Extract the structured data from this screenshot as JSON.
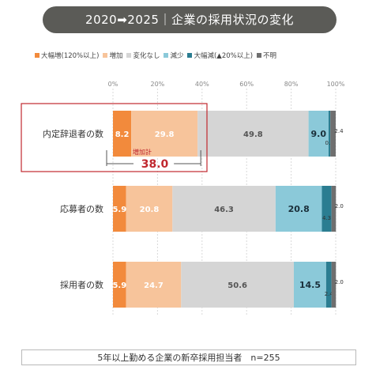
{
  "title": "2020➡2025｜企業の採用状況の変化",
  "footer": "5年以上勤める企業の新卒採用担当者　n=255",
  "legend": [
    {
      "label": "大幅増(120%以上)",
      "color": "#f28a3c"
    },
    {
      "label": "増加",
      "color": "#f7c49b"
    },
    {
      "label": "変化なし",
      "color": "#d5d5d5"
    },
    {
      "label": "減少",
      "color": "#8bc9d9"
    },
    {
      "label": "大幅減(▲20%以上)",
      "color": "#2b7d91"
    },
    {
      "label": "不明",
      "color": "#6f6f6f"
    }
  ],
  "highlight": {
    "label": "増加計",
    "value": "38.0",
    "color": "#c0282f"
  },
  "chart_data": {
    "type": "bar",
    "orientation": "horizontal",
    "stacked": true,
    "xlim": [
      0,
      100
    ],
    "xticks": [
      "0%",
      "20%",
      "40%",
      "60%",
      "80%",
      "100%"
    ],
    "categories": [
      "内定辞退者の数",
      "応募者の数",
      "採用者の数"
    ],
    "series": [
      {
        "name": "大幅増(120%以上)",
        "values": [
          8.2,
          5.9,
          5.9
        ]
      },
      {
        "name": "増加",
        "values": [
          29.8,
          20.8,
          24.7
        ]
      },
      {
        "name": "変化なし",
        "values": [
          49.8,
          46.3,
          50.6
        ]
      },
      {
        "name": "減少",
        "values": [
          9.0,
          20.8,
          14.5
        ]
      },
      {
        "name": "大幅減(▲20%以上)",
        "values": [
          0.8,
          4.3,
          2.4
        ]
      },
      {
        "name": "不明",
        "values": [
          2.4,
          2.0,
          2.0
        ]
      }
    ]
  }
}
